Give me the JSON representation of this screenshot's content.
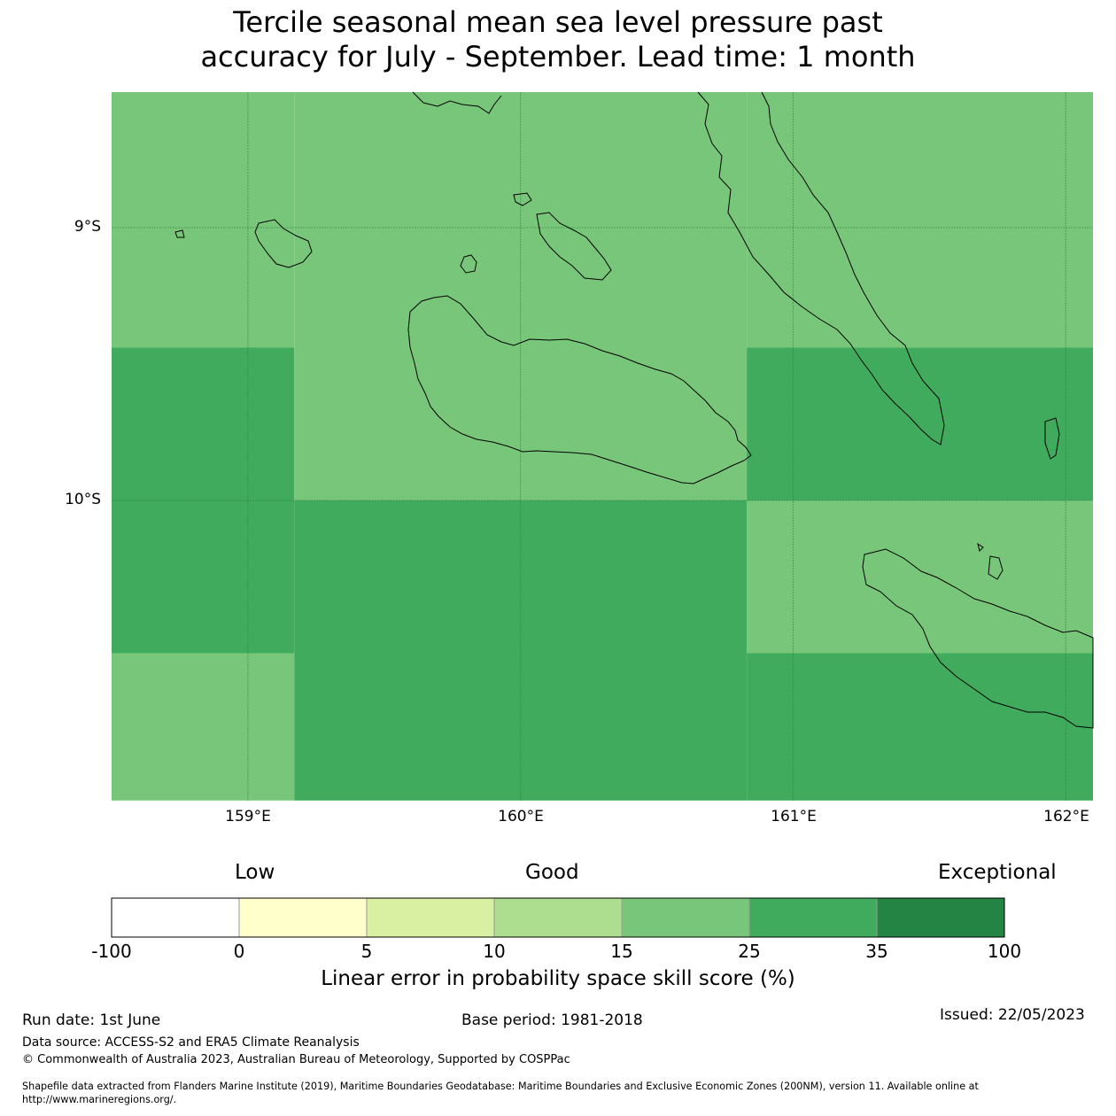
{
  "title": {
    "line1": "Tercile seasonal mean sea level pressure past",
    "line2": "accuracy for July - September. Lead time: 1 month"
  },
  "map": {
    "lat_labels": [
      "9°S",
      "10°S"
    ],
    "lon_labels": [
      "159°E",
      "160°E",
      "161°E",
      "162°E"
    ],
    "extent": {
      "lon_min": 158.5,
      "lon_max": 162.1,
      "lat_north": -8.5,
      "lat_south": -11.1
    },
    "cells": [
      {
        "lon": [
          158.5,
          159.17
        ],
        "lat": [
          -8.5,
          -9.44
        ],
        "category": "15-25"
      },
      {
        "lon": [
          159.17,
          160.83
        ],
        "lat": [
          -8.5,
          -9.44
        ],
        "category": "15-25"
      },
      {
        "lon": [
          160.83,
          162.1
        ],
        "lat": [
          -8.5,
          -9.44
        ],
        "category": "15-25"
      },
      {
        "lon": [
          158.5,
          159.17
        ],
        "lat": [
          -9.44,
          -10.0
        ],
        "category": "25-35"
      },
      {
        "lon": [
          159.17,
          160.83
        ],
        "lat": [
          -9.44,
          -10.0
        ],
        "category": "15-25"
      },
      {
        "lon": [
          160.83,
          162.1
        ],
        "lat": [
          -9.44,
          -10.0
        ],
        "category": "25-35"
      },
      {
        "lon": [
          158.5,
          159.17
        ],
        "lat": [
          -10.0,
          -10.56
        ],
        "category": "25-35"
      },
      {
        "lon": [
          159.17,
          160.83
        ],
        "lat": [
          -10.0,
          -10.56
        ],
        "category": "25-35"
      },
      {
        "lon": [
          160.83,
          162.1
        ],
        "lat": [
          -10.0,
          -10.56
        ],
        "category": "15-25"
      },
      {
        "lon": [
          158.5,
          159.17
        ],
        "lat": [
          -10.56,
          -11.1
        ],
        "category": "15-25"
      },
      {
        "lon": [
          159.17,
          160.83
        ],
        "lat": [
          -10.56,
          -11.1
        ],
        "category": "25-35"
      },
      {
        "lon": [
          160.83,
          162.1
        ],
        "lat": [
          -10.56,
          -11.1
        ],
        "category": "25-35"
      }
    ]
  },
  "colorbar": {
    "categories": [
      "Low",
      "Good",
      "Exceptional"
    ],
    "ticks": [
      "-100",
      "0",
      "5",
      "10",
      "15",
      "25",
      "35",
      "100"
    ],
    "colors": [
      "#ffffff",
      "#ffffcc",
      "#d9f0a3",
      "#addd8e",
      "#78c679",
      "#41ab5d",
      "#238443"
    ],
    "label": "Linear error in probability space skill score (%)"
  },
  "footer": {
    "run_date": "Run date: 1st June",
    "base_period": "Base period: 1981-2018",
    "issued": "Issued: 22/05/2023",
    "data_source": "Data source: ACCESS-S2 and ERA5 Climate Reanalysis",
    "copyright": "© Commonwealth of Australia 2023, Australian Bureau of Meteorology, Supported by COSPPac",
    "shapefile_line1": "Shapefile data extracted from Flanders Marine Institute (2019), Maritime Boundaries Geodatabase: Maritime Boundaries and Exclusive Economic Zones (200NM), version 11. Available online at",
    "shapefile_line2": "http://www.marineregions.org/."
  }
}
